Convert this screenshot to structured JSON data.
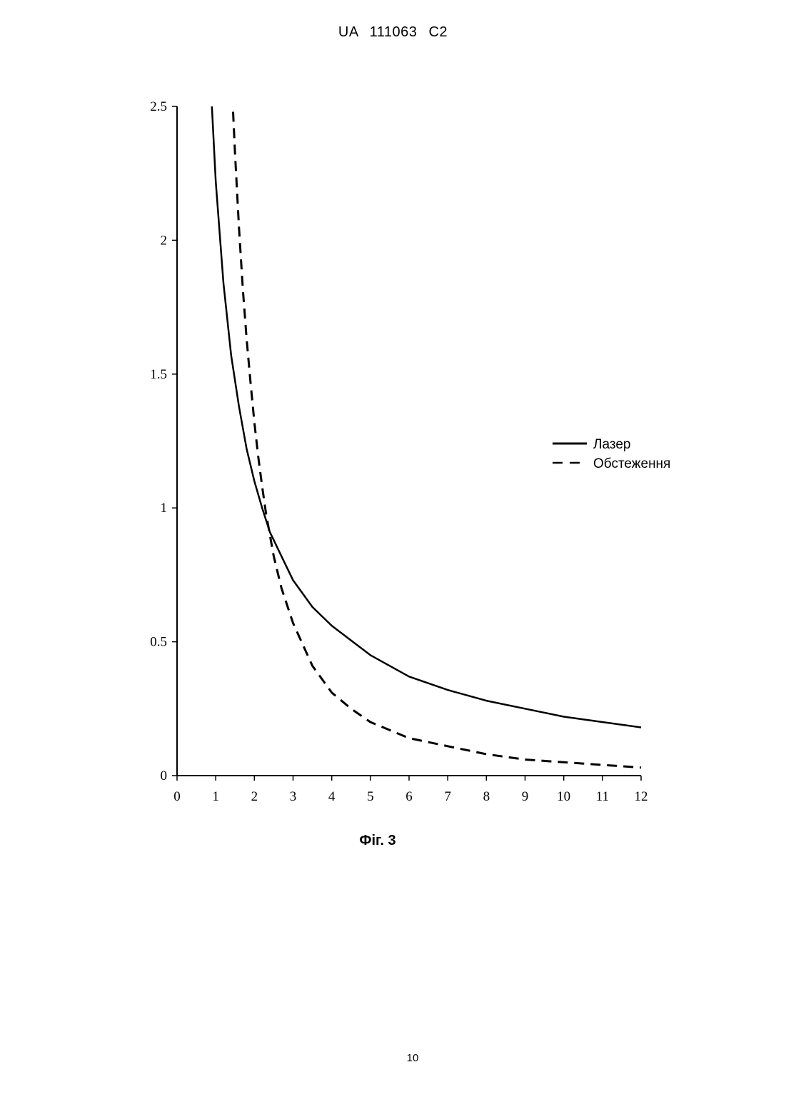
{
  "header": {
    "patent_number": "UA   111063   C2"
  },
  "caption": "Фіг. 3",
  "page_number": "10",
  "chart_data": {
    "type": "line",
    "title": "",
    "xlabel": "",
    "ylabel": "",
    "xlim": [
      0,
      12
    ],
    "ylim": [
      0,
      2.5
    ],
    "x_ticks": [
      0,
      1,
      2,
      3,
      4,
      5,
      6,
      7,
      8,
      9,
      10,
      11,
      12
    ],
    "y_ticks": [
      0,
      0.5,
      1,
      1.5,
      2,
      2.5
    ],
    "y_tick_labels": [
      "0",
      "0.5",
      "1",
      "1.5",
      "2",
      "2.5"
    ],
    "grid": false,
    "legend_position": "right",
    "series": [
      {
        "name": "Лазер",
        "style": "solid",
        "x": [
          0.9,
          1.0,
          1.2,
          1.4,
          1.6,
          1.8,
          2.0,
          2.2,
          2.4,
          2.6,
          3.0,
          3.5,
          4.0,
          5.0,
          6.0,
          7.0,
          8.0,
          9.0,
          10.0,
          11.0,
          12.0
        ],
        "y": [
          2.5,
          2.22,
          1.84,
          1.57,
          1.38,
          1.22,
          1.1,
          1.0,
          0.91,
          0.85,
          0.73,
          0.63,
          0.56,
          0.45,
          0.37,
          0.32,
          0.28,
          0.25,
          0.22,
          0.2,
          0.18
        ]
      },
      {
        "name": "Обстеження",
        "style": "dashed",
        "x": [
          1.45,
          1.5,
          1.6,
          1.7,
          1.8,
          1.9,
          2.0,
          2.1,
          2.2,
          2.3,
          2.4,
          2.5,
          2.7,
          3.0,
          3.5,
          4.0,
          4.5,
          5.0,
          5.5,
          6.0,
          7.0,
          8.0,
          9.0,
          10.0,
          11.0,
          12.0
        ],
        "y": [
          2.48,
          2.32,
          2.05,
          1.82,
          1.63,
          1.47,
          1.32,
          1.19,
          1.08,
          0.98,
          0.9,
          0.82,
          0.7,
          0.57,
          0.41,
          0.31,
          0.25,
          0.2,
          0.17,
          0.14,
          0.11,
          0.08,
          0.06,
          0.05,
          0.04,
          0.03
        ]
      }
    ]
  }
}
